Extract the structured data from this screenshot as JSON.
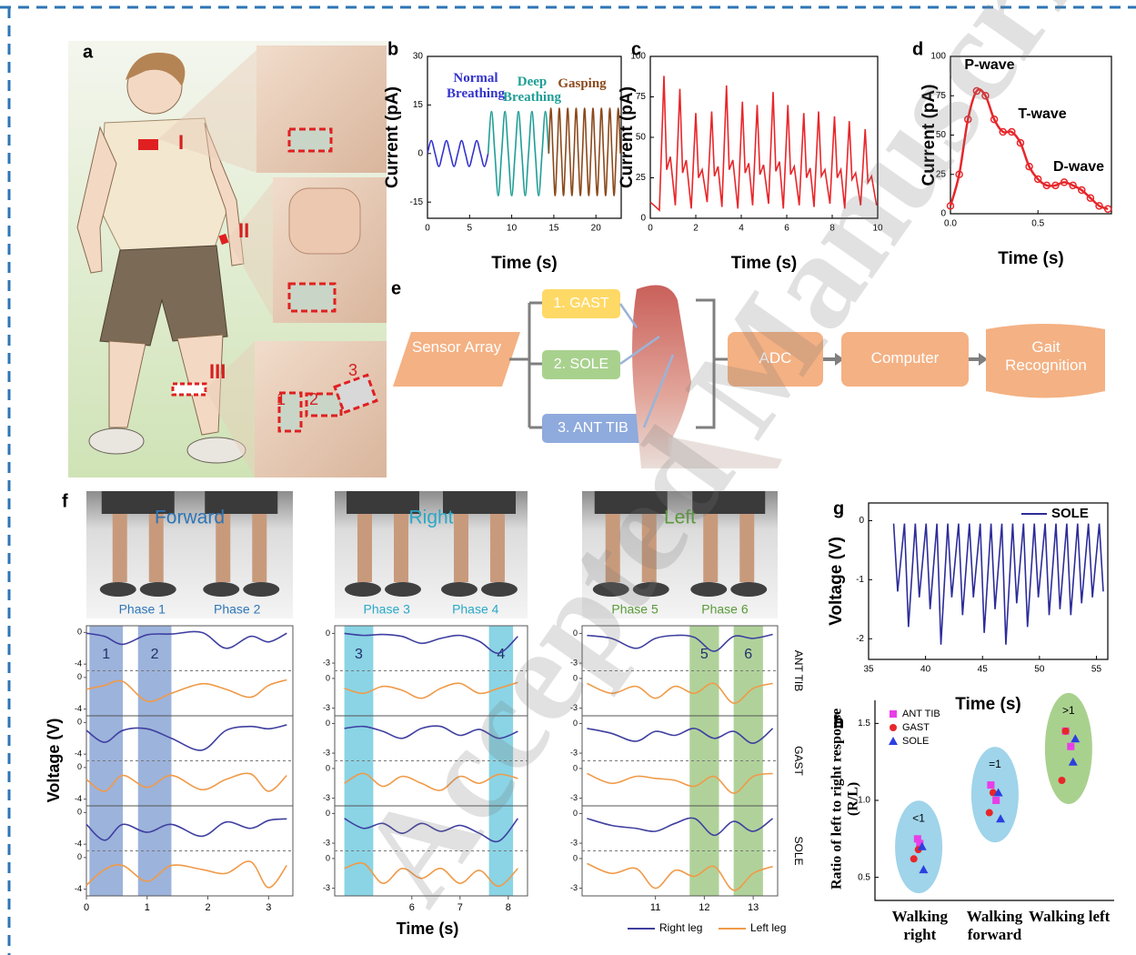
{
  "watermark": "Accepted Manuscript",
  "panel_a": {
    "label": "a",
    "sites": [
      "I",
      "II",
      "III"
    ],
    "sensors": [
      "1",
      "2",
      "3"
    ]
  },
  "panel_e": {
    "label": "e",
    "input": "Sensor Array",
    "muscles": [
      "1. GAST",
      "2. SOLE",
      "3. ANT TIB"
    ],
    "steps": [
      "ADC",
      "Computer",
      "Gait Recognition"
    ]
  },
  "chart_data": [
    {
      "panel": "b",
      "type": "line",
      "smooth": true,
      "xlabel": "Time (s)",
      "ylabel": "Current (pA)",
      "xlim": [
        0,
        23
      ],
      "xticks": [
        0,
        5,
        10,
        15,
        20
      ],
      "ylim": [
        -20,
        30
      ],
      "yticks": [
        -15,
        0,
        15,
        30
      ],
      "series": [
        {
          "name": "Normal Breathing",
          "color": "#3333cc",
          "x": [
            0,
            0.45,
            0.9,
            1.35,
            1.8,
            2.25,
            2.7,
            3.15,
            3.6,
            4.05,
            4.5,
            4.95,
            5.4,
            5.85,
            6.3,
            6.75,
            7.2
          ],
          "values": [
            0,
            4,
            0,
            -4,
            0,
            4,
            0,
            -4,
            0,
            4,
            0,
            -4,
            0,
            4,
            0,
            -4,
            0
          ]
        },
        {
          "name": "Deep Breathing",
          "color": "#1f9e96",
          "x": [
            7.2,
            7.6,
            8.0,
            8.4,
            8.8,
            9.2,
            9.6,
            10.0,
            10.4,
            10.8,
            11.2,
            11.6,
            12.0,
            12.4,
            12.8,
            13.2,
            13.6,
            14.0,
            14.4
          ],
          "values": [
            0,
            13,
            0,
            -13,
            0,
            13,
            0,
            -13,
            0,
            13,
            0,
            -13,
            0,
            13,
            0,
            -13,
            0,
            13,
            0
          ]
        },
        {
          "name": "Gasping",
          "color": "#8b4a1c",
          "x": [
            14.4,
            14.65,
            14.9,
            15.15,
            15.4,
            15.65,
            15.9,
            16.15,
            16.4,
            16.65,
            16.9,
            17.15,
            17.4,
            17.65,
            17.9,
            18.15,
            18.4,
            18.65,
            18.9,
            19.15,
            19.4,
            19.65,
            19.9,
            20.15,
            20.4,
            20.65,
            20.9,
            21.15,
            21.4,
            21.65,
            21.9,
            22.15,
            22.4,
            22.65,
            22.9
          ],
          "values": [
            0,
            14,
            0,
            -13,
            0,
            14,
            0,
            -13,
            0,
            14,
            0,
            -13,
            0,
            14,
            0,
            -13,
            0,
            14,
            0,
            -13,
            0,
            14,
            0,
            -13,
            0,
            14,
            0,
            -13,
            0,
            14,
            0,
            -13,
            0,
            14,
            0
          ]
        }
      ]
    },
    {
      "panel": "c",
      "type": "line",
      "xlabel": "Time (s)",
      "ylabel": "Current (pA)",
      "xlim": [
        0,
        10
      ],
      "xticks": [
        0,
        2,
        4,
        6,
        8,
        10
      ],
      "ylim": [
        0,
        100
      ],
      "yticks": [
        0,
        25,
        50,
        75,
        100
      ],
      "series": [
        {
          "color": "#e8262a",
          "x": [
            0,
            0.4,
            0.6,
            0.72,
            0.88,
            1.1,
            1.3,
            1.42,
            1.58,
            1.8,
            2.0,
            2.12,
            2.28,
            2.5,
            2.7,
            2.82,
            2.98,
            3.15,
            3.35,
            3.47,
            3.63,
            3.85,
            4.05,
            4.17,
            4.33,
            4.5,
            4.7,
            4.82,
            4.98,
            5.2,
            5.4,
            5.52,
            5.68,
            5.85,
            6.05,
            6.17,
            6.33,
            6.55,
            6.75,
            6.87,
            7.03,
            7.2,
            7.4,
            7.52,
            7.68,
            7.9,
            8.1,
            8.22,
            8.38,
            8.55,
            8.75,
            8.87,
            9.03,
            9.25,
            9.45,
            9.57,
            9.73,
            9.95
          ],
          "values": [
            10,
            5,
            88,
            30,
            38,
            8,
            80,
            28,
            36,
            6,
            65,
            25,
            30,
            10,
            66,
            26,
            32,
            7,
            82,
            30,
            36,
            6,
            72,
            28,
            34,
            8,
            70,
            27,
            33,
            9,
            78,
            29,
            35,
            6,
            70,
            27,
            32,
            8,
            65,
            25,
            31,
            7,
            66,
            26,
            30,
            9,
            63,
            25,
            30,
            6,
            60,
            24,
            28,
            8,
            55,
            22,
            26,
            8
          ]
        }
      ]
    },
    {
      "panel": "d",
      "type": "line",
      "smooth": true,
      "markers": true,
      "xlabel": "Time (s)",
      "ylabel": "Current (pA)",
      "xlim": [
        0,
        0.92
      ],
      "xticks": [
        {
          "value": 0,
          "label": "0.0"
        },
        0.5
      ],
      "ylim": [
        0,
        100
      ],
      "yticks": [
        0,
        25,
        50,
        75,
        100
      ],
      "annotations": [
        "P-wave",
        "T-wave",
        "D-wave"
      ],
      "series": [
        {
          "color": "#e8262a",
          "x": [
            0,
            0.05,
            0.1,
            0.15,
            0.2,
            0.25,
            0.3,
            0.35,
            0.4,
            0.45,
            0.5,
            0.55,
            0.6,
            0.65,
            0.7,
            0.75,
            0.8,
            0.85,
            0.9
          ],
          "values": [
            5,
            25,
            60,
            78,
            75,
            60,
            52,
            52,
            45,
            30,
            22,
            18,
            18,
            20,
            18,
            15,
            10,
            5,
            3
          ]
        }
      ]
    },
    {
      "panel": "f",
      "type": "multiline",
      "xlabel": "Time (s)",
      "ylabel": "Voltage (V)",
      "rows": [
        "ANT TIB",
        "GAST",
        "SOLE"
      ],
      "legs": [
        {
          "name": "Right leg",
          "color": "#3f3fa0"
        },
        {
          "name": "Left leg",
          "color": "#f09a48"
        }
      ],
      "columns": [
        {
          "title": "Forward",
          "title_color": "#2e75b6",
          "phases": [
            "Phase 1",
            "Phase 2"
          ],
          "band_color": "#4a74c0",
          "xlim": [
            0,
            3.4
          ],
          "xticks": [
            0,
            1,
            2,
            3
          ],
          "ylim": [
            -4.5,
            0.5
          ],
          "yticks": [
            0,
            -4
          ],
          "bands": [
            {
              "label": "1",
              "x": [
                0.05,
                0.6
              ]
            },
            {
              "label": "2",
              "x": [
                0.85,
                1.4
              ]
            }
          ],
          "x": [
            0,
            0.3,
            0.6,
            1.0,
            1.4,
            1.9,
            2.3,
            2.7,
            3.0,
            3.3
          ],
          "traces": [
            [
              [
                -0.1,
                -0.5,
                -1.5,
                -0.3,
                -0.2,
                0,
                -2.0,
                -0.5,
                -1.2,
                -0.1
              ],
              [
                -1.5,
                -1.0,
                -0.5,
                -3.0,
                -2.0,
                -0.8,
                -1.5,
                -2.5,
                -1.0,
                -0.3
              ]
            ],
            [
              [
                -1.0,
                -2.5,
                -1.0,
                -0.8,
                -2.0,
                -3.5,
                -1.0,
                -0.5,
                -0.8,
                -0.3
              ],
              [
                -1.5,
                -3.0,
                -1.0,
                -2.5,
                -1.0,
                -2.8,
                -1.5,
                -0.8,
                -3.0,
                -1.0
              ]
            ],
            [
              [
                -1.5,
                -3.5,
                -1.5,
                -2.5,
                -1.5,
                -3.0,
                -1.2,
                -2.0,
                -1.0,
                -0.8
              ],
              [
                -3.5,
                -1.5,
                -1.0,
                -3.0,
                -1.0,
                -1.5,
                -2.0,
                -0.5,
                -3.8,
                -1.0
              ]
            ]
          ]
        },
        {
          "title": "Right",
          "title_color": "#2aa8c8",
          "phases": [
            "Phase 3",
            "Phase 4"
          ],
          "band_color": "#29b0d0",
          "xlim": [
            4.4,
            8.4
          ],
          "xticks": [
            6,
            7,
            8
          ],
          "ylim": [
            -3.5,
            0.5
          ],
          "yticks": [
            0,
            -3
          ],
          "bands": [
            {
              "label": "3",
              "x": [
                4.6,
                5.2
              ]
            },
            {
              "label": "4",
              "x": [
                7.6,
                8.1
              ]
            }
          ],
          "x": [
            4.6,
            5.0,
            5.4,
            5.8,
            6.2,
            6.6,
            7.0,
            7.4,
            7.8,
            8.2
          ],
          "traces": [
            [
              [
                0,
                -0.2,
                -0.1,
                -0.3,
                -1.0,
                -0.5,
                -0.2,
                -0.8,
                -2.0,
                -0.3
              ],
              [
                -1.0,
                -1.5,
                -0.8,
                -1.2,
                -2.0,
                -1.0,
                -0.5,
                -1.5,
                -1.0,
                -0.4
              ]
            ],
            [
              [
                -0.5,
                -0.3,
                -0.8,
                -1.5,
                -0.5,
                -0.3,
                -1.2,
                -0.6,
                -1.5,
                -0.8
              ],
              [
                -1.5,
                -0.5,
                -1.8,
                -0.8,
                -1.5,
                -2.2,
                -0.8,
                -1.5,
                -0.6,
                -1.0
              ]
            ],
            [
              [
                -0.5,
                -1.5,
                -1.0,
                -2.0,
                -1.0,
                -1.8,
                -1.2,
                -2.0,
                -2.8,
                -0.5
              ],
              [
                -1.0,
                -0.5,
                -2.5,
                -1.0,
                -2.0,
                -1.0,
                -2.5,
                -1.2,
                -2.8,
                -1.0
              ]
            ]
          ]
        },
        {
          "title": "Left",
          "title_color": "#5a9a3a",
          "phases": [
            "Phase 5",
            "Phase 6"
          ],
          "band_color": "#70ad47",
          "xlim": [
            9.5,
            13.5
          ],
          "xticks": [
            11,
            12,
            13
          ],
          "ylim": [
            -3.5,
            0.5
          ],
          "yticks": [
            0,
            -3
          ],
          "bands": [
            {
              "label": "5",
              "x": [
                11.7,
                12.3
              ]
            },
            {
              "label": "6",
              "x": [
                12.6,
                13.2
              ]
            }
          ],
          "x": [
            9.6,
            10.1,
            10.6,
            11.0,
            11.4,
            11.8,
            12.2,
            12.6,
            13.0,
            13.4
          ],
          "traces": [
            [
              [
                -0.2,
                -0.5,
                -1.5,
                -0.5,
                -0.2,
                -0.4,
                -1.8,
                -0.3,
                -0.5,
                -0.1
              ],
              [
                -0.5,
                -1.5,
                -0.8,
                -2.0,
                -0.8,
                -1.5,
                -0.5,
                -2.5,
                -1.0,
                -0.5
              ]
            ],
            [
              [
                -0.5,
                -1.0,
                -1.8,
                -0.8,
                -1.2,
                -0.5,
                -1.5,
                -0.8,
                -2.0,
                -0.5
              ],
              [
                -0.5,
                -1.5,
                -0.8,
                -1.0,
                -1.2,
                -1.8,
                -0.8,
                -2.5,
                -0.8,
                -0.5
              ]
            ],
            [
              [
                -0.5,
                -1.2,
                -1.5,
                -1.8,
                -1.0,
                -0.5,
                -2.2,
                -0.8,
                -1.8,
                -0.5
              ],
              [
                -0.5,
                -1.5,
                -1.0,
                -3.0,
                -1.2,
                -1.8,
                -0.8,
                -3.2,
                -1.5,
                -0.8
              ]
            ]
          ]
        }
      ]
    },
    {
      "panel": "g",
      "type": "line",
      "xlabel": "Time (s)",
      "ylabel": "Voltage (V)",
      "xlim": [
        35,
        56
      ],
      "xticks": [
        35,
        40,
        45,
        50,
        55
      ],
      "ylim": [
        -2.35,
        0.3
      ],
      "yticks": [
        0,
        -1,
        -2
      ],
      "series": [
        {
          "name": "SOLE",
          "color": "#2c2c9a",
          "x": [
            37.2,
            37.55,
            38.15,
            38.5,
            39.1,
            39.45,
            40.05,
            40.4,
            41.0,
            41.35,
            41.95,
            42.3,
            42.9,
            43.25,
            43.85,
            44.2,
            44.8,
            45.15,
            45.75,
            46.1,
            46.7,
            47.05,
            47.65,
            48.0,
            48.6,
            48.95,
            49.55,
            49.9,
            50.5,
            50.85,
            51.45,
            51.8,
            52.4,
            52.75,
            53.35,
            53.7,
            54.3,
            54.65,
            55.25,
            55.6
          ],
          "values": [
            -0.05,
            -1.2,
            -0.05,
            -1.8,
            -0.05,
            -1.3,
            -0.05,
            -1.5,
            -0.05,
            -2.1,
            -0.05,
            -1.3,
            -0.05,
            -1.6,
            -0.05,
            -1.3,
            -0.05,
            -1.9,
            -0.05,
            -1.5,
            -0.05,
            -2.1,
            -0.05,
            -1.4,
            -0.05,
            -1.8,
            -0.05,
            -1.3,
            -0.05,
            -1.6,
            -0.05,
            -1.5,
            -0.05,
            -1.6,
            -0.05,
            -1.4,
            -0.05,
            -1.3,
            -0.05,
            -1.2
          ]
        }
      ]
    },
    {
      "panel": "h",
      "type": "scatter",
      "ylabel": "Ratio of left to right response (R/L)",
      "categories": [
        "Walking right",
        "Walking forward",
        "Walking left"
      ],
      "ratio_labels": [
        "<1",
        "=1",
        ">1"
      ],
      "ellipse_colors": [
        "#9fd4ea",
        "#9fd4ea",
        "#a9d18e"
      ],
      "xlim": [
        0.4,
        3.6
      ],
      "ylim": [
        0.35,
        1.65
      ],
      "yticks": [
        0.5,
        {
          "value": 1,
          "label": "1.0"
        },
        1.5
      ],
      "series": [
        {
          "name": "ANT TIB",
          "color": "#e83ee8",
          "marker": "square",
          "x": [
            0.97,
            1.0,
            1.95,
            2.02,
            2.95,
            3.02
          ],
          "values": [
            0.75,
            0.72,
            1.1,
            1.0,
            1.45,
            1.35
          ]
        },
        {
          "name": "GAST",
          "color": "#e8262a",
          "marker": "circle",
          "x": [
            0.92,
            0.98,
            1.93,
            1.98,
            2.9,
            2.95
          ],
          "values": [
            0.62,
            0.68,
            0.92,
            1.05,
            1.13,
            1.45
          ]
        },
        {
          "name": "SOLE",
          "color": "#2b3fe0",
          "marker": "triangle",
          "x": [
            1.03,
            1.05,
            2.05,
            2.08,
            3.05,
            3.08
          ],
          "values": [
            0.7,
            0.55,
            1.05,
            0.88,
            1.25,
            1.4
          ]
        }
      ]
    }
  ]
}
